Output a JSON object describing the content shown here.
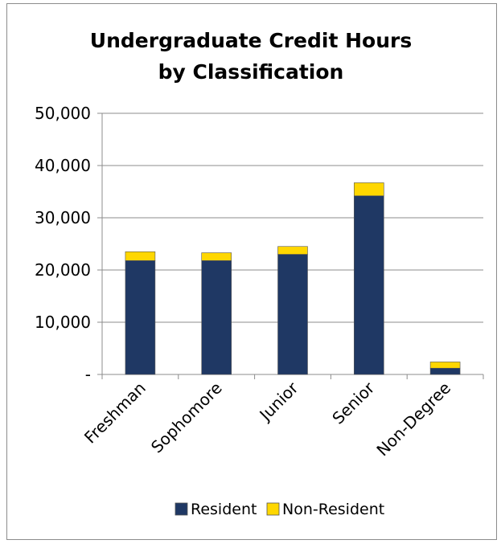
{
  "chart_data": {
    "type": "bar",
    "stacked": true,
    "title_lines": [
      "Undergraduate Credit Hours",
      "by Classification"
    ],
    "categories": [
      "Freshman",
      "Sophomore",
      "Junior",
      "Senior",
      "Non-Degree"
    ],
    "series": [
      {
        "name": "Resident",
        "color": "#1f3864",
        "values": [
          21800,
          21800,
          23000,
          34200,
          1200
        ]
      },
      {
        "name": "Non-Resident",
        "color": "#ffd700",
        "values": [
          1700,
          1500,
          1500,
          2500,
          1200
        ]
      }
    ],
    "ylim": [
      0,
      50000
    ],
    "yticks": [
      0,
      10000,
      20000,
      30000,
      40000,
      50000
    ],
    "ytick_labels": [
      "-",
      "10,000",
      "20,000",
      "30,000",
      "40,000",
      "50,000"
    ],
    "grid": true,
    "legend_position": "bottom"
  }
}
